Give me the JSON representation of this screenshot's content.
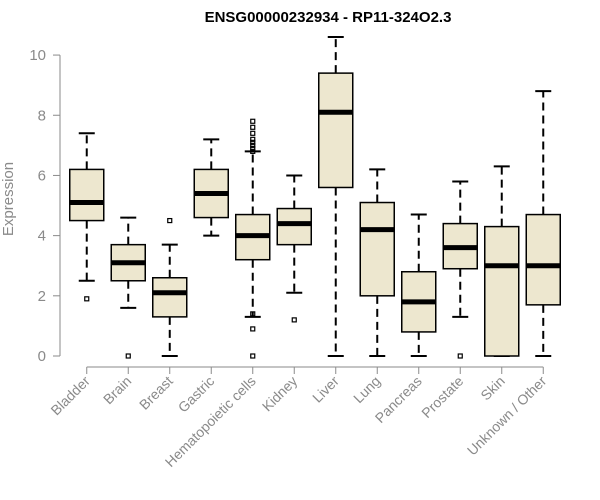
{
  "chart_data": {
    "type": "boxplot",
    "title": "ENSG00000232934 - RP11-324O2.3",
    "xlabel": "",
    "ylabel": "Expression",
    "ylim": [
      0,
      10.7
    ],
    "yticks": [
      0,
      2,
      4,
      6,
      8,
      10
    ],
    "box_fill": "#ede7cf",
    "categories": [
      "Bladder",
      "Brain",
      "Breast",
      "Gastric",
      "Hematopoietic cells",
      "Kidney",
      "Liver",
      "Lung",
      "Pancreas",
      "Prostate",
      "Skin",
      "Unknown / Other"
    ],
    "boxes": [
      {
        "label": "Bladder",
        "min": 2.5,
        "q1": 4.5,
        "median": 5.1,
        "q3": 6.2,
        "max": 7.4,
        "outliers": [
          1.9
        ]
      },
      {
        "label": "Brain",
        "min": 1.6,
        "q1": 2.5,
        "median": 3.1,
        "q3": 3.7,
        "max": 4.6,
        "outliers": [
          0.0
        ]
      },
      {
        "label": "Breast",
        "min": 0.0,
        "q1": 1.3,
        "median": 2.1,
        "q3": 2.6,
        "max": 3.7,
        "outliers": [
          4.5
        ]
      },
      {
        "label": "Gastric",
        "min": 4.0,
        "q1": 4.6,
        "median": 5.4,
        "q3": 6.2,
        "max": 7.2,
        "outliers": []
      },
      {
        "label": "Hematopoietic cells",
        "min": 1.3,
        "q1": 3.2,
        "median": 4.0,
        "q3": 4.7,
        "max": 6.8,
        "outliers": [
          0.0,
          0.9,
          1.4,
          6.8,
          6.9,
          7.0,
          7.1,
          7.2,
          7.4,
          7.6,
          7.8
        ]
      },
      {
        "label": "Kidney",
        "min": 2.1,
        "q1": 3.7,
        "median": 4.4,
        "q3": 4.9,
        "max": 6.0,
        "outliers": [
          1.2
        ]
      },
      {
        "label": "Liver",
        "min": 0.0,
        "q1": 5.6,
        "median": 8.1,
        "q3": 9.4,
        "max": 10.6,
        "outliers": []
      },
      {
        "label": "Lung",
        "min": 0.0,
        "q1": 2.0,
        "median": 4.2,
        "q3": 5.1,
        "max": 6.2,
        "outliers": []
      },
      {
        "label": "Pancreas",
        "min": 0.0,
        "q1": 0.8,
        "median": 1.8,
        "q3": 2.8,
        "max": 4.7,
        "outliers": []
      },
      {
        "label": "Prostate",
        "min": 1.3,
        "q1": 2.9,
        "median": 3.6,
        "q3": 4.4,
        "max": 5.8,
        "outliers": [
          0.0
        ]
      },
      {
        "label": "Skin",
        "min": 0.0,
        "q1": 0.0,
        "median": 3.0,
        "q3": 4.3,
        "max": 6.3,
        "outliers": []
      },
      {
        "label": "Unknown / Other",
        "min": 0.0,
        "q1": 1.7,
        "median": 3.0,
        "q3": 4.7,
        "max": 8.8,
        "outliers": []
      }
    ]
  }
}
